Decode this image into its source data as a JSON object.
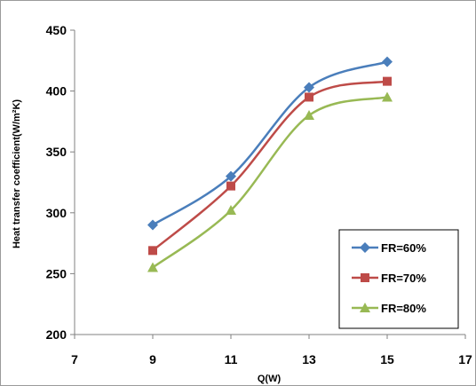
{
  "chart_data": {
    "type": "line",
    "title": "",
    "xlabel": "Q(W)",
    "ylabel": "Heat transfer coefficient(W/m²K)",
    "xlim": [
      7,
      17
    ],
    "ylim": [
      200,
      450
    ],
    "xticks": [
      "7",
      "9",
      "11",
      "13",
      "15",
      "17"
    ],
    "yticks": [
      "200",
      "250",
      "300",
      "350",
      "400",
      "450"
    ],
    "grid": false,
    "legend_position": "bottom-right",
    "x": [
      9,
      11,
      13,
      15
    ],
    "series": [
      {
        "name": "FR=60%",
        "color": "#4a7ebb",
        "marker": "diamond",
        "values": [
          290,
          330,
          403,
          424
        ]
      },
      {
        "name": "FR=70%",
        "color": "#be4b48",
        "marker": "square",
        "values": [
          269,
          322,
          395,
          408
        ]
      },
      {
        "name": "FR=80%",
        "color": "#98b954",
        "marker": "triangle",
        "values": [
          255,
          302,
          380,
          395
        ]
      }
    ]
  }
}
